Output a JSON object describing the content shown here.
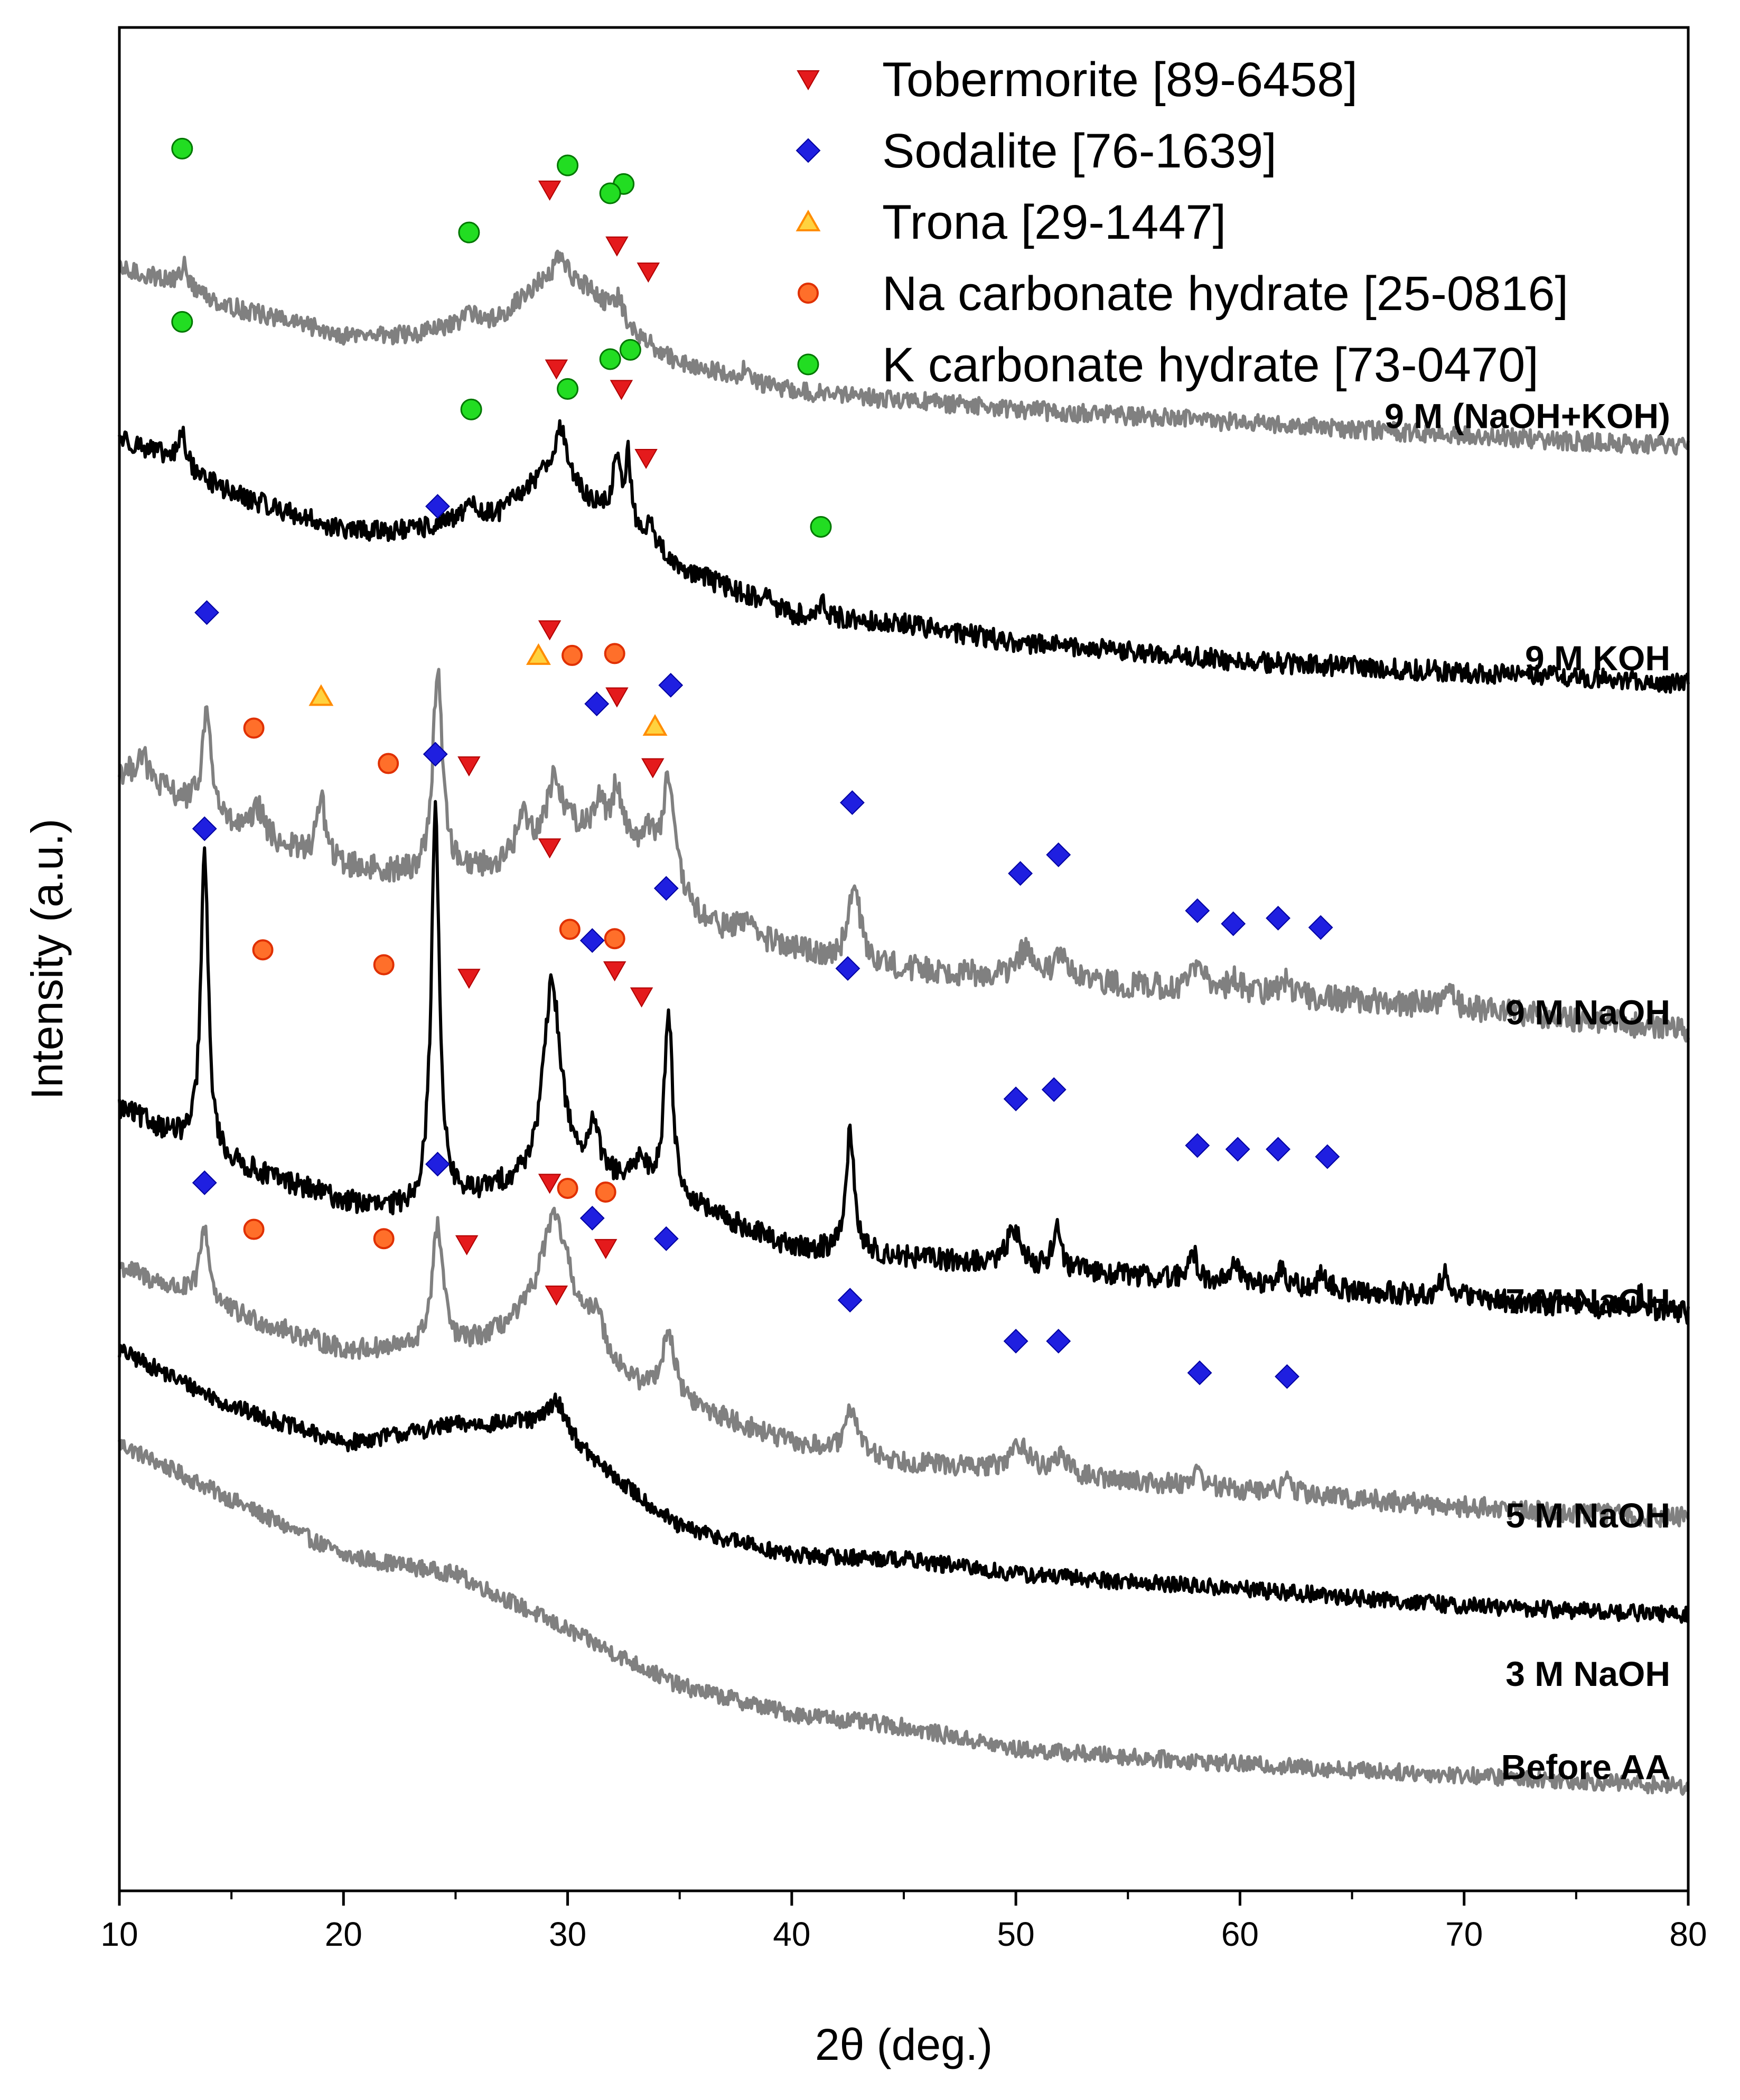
{
  "chart_data": {
    "type": "line",
    "title": "",
    "xlabel": "2θ (deg.)",
    "ylabel": "Intensity (a.u.)",
    "xlim": [
      10,
      80
    ],
    "ylim": [
      0,
      100
    ],
    "xticks": [
      10,
      20,
      30,
      40,
      50,
      60,
      70,
      80
    ],
    "grid": false,
    "legend_position": "top-right",
    "legend": [
      {
        "key": "tob",
        "label": "Tobermorite [89-6458]",
        "marker": "triangle-down",
        "color": "#e41a1c"
      },
      {
        "key": "sod",
        "label": "Sodalite [76-1639]",
        "marker": "diamond",
        "color": "#1f1fe0"
      },
      {
        "key": "tro",
        "label": "Trona [29-1447]",
        "marker": "triangle-up",
        "color": "#ffd23f"
      },
      {
        "key": "nac",
        "label": "Na carbonate hydrate [25-0816]",
        "marker": "circle",
        "color": "#ff6f2a"
      },
      {
        "key": "kc",
        "label": "K carbonate hydrate [73-0470]",
        "marker": "circle",
        "color": "#22dd22"
      }
    ],
    "series": [
      {
        "name": "Before AA",
        "color": "#808080",
        "baseline": 3,
        "noise": 0.45,
        "profile": [
          [
            10,
            21
          ],
          [
            15,
            18
          ],
          [
            20,
            15
          ],
          [
            25,
            14
          ],
          [
            30,
            11
          ],
          [
            35,
            8
          ],
          [
            40,
            6.5
          ],
          [
            45,
            5.8
          ],
          [
            50,
            4.6
          ],
          [
            60,
            3.8
          ],
          [
            70,
            3.2
          ],
          [
            80,
            2.6
          ]
        ],
        "peaks": [],
        "label_y": 6,
        "markers": []
      },
      {
        "name": "3 M NaOH",
        "color": "#000000",
        "baseline": 10,
        "noise": 0.45,
        "profile": [
          [
            10,
            19
          ],
          [
            15,
            16
          ],
          [
            20,
            14
          ],
          [
            25,
            15
          ],
          [
            28,
            15
          ],
          [
            30,
            14
          ],
          [
            35,
            9.5
          ],
          [
            40,
            8
          ],
          [
            45,
            7.8
          ],
          [
            50,
            7
          ],
          [
            60,
            6.2
          ],
          [
            70,
            5.3
          ],
          [
            80,
            4.8
          ]
        ],
        "peaks": [
          [
            29.5,
            2,
            0.6
          ]
        ],
        "label_y": 11,
        "markers": []
      },
      {
        "name": "5 M NaOH",
        "color": "#808080",
        "baseline": 18,
        "noise": 0.55,
        "profile": [
          [
            10,
            15.5
          ],
          [
            15,
            13
          ],
          [
            20,
            11
          ],
          [
            25,
            11
          ],
          [
            28,
            12
          ],
          [
            30,
            12
          ],
          [
            33,
            9
          ],
          [
            40,
            6
          ],
          [
            45,
            5
          ],
          [
            50,
            4.5
          ],
          [
            60,
            3.5
          ],
          [
            70,
            2.6
          ],
          [
            80,
            2
          ]
        ],
        "peaks": [
          [
            13.8,
            4,
            0.25
          ],
          [
            24.2,
            6.5,
            0.3
          ],
          [
            29.4,
            6,
            0.8
          ],
          [
            31.3,
            2,
            0.3
          ],
          [
            34.5,
            3.5,
            0.35
          ],
          [
            42.7,
            2.5,
            0.3
          ],
          [
            50.2,
            1.5,
            0.5
          ],
          [
            52,
            1.1,
            0.3
          ],
          [
            58.1,
            0.8,
            0.3
          ],
          [
            62.1,
            0.7,
            0.3
          ]
        ],
        "label_y": 19.5,
        "markers": [
          {
            "type": "sod",
            "x": 13.8,
            "y": 38
          },
          {
            "type": "sod",
            "x": 24.2,
            "y": 39
          },
          {
            "type": "tob",
            "x": 29.2,
            "y": 38
          },
          {
            "type": "nac",
            "x": 16.0,
            "y": 35.5
          },
          {
            "type": "nac",
            "x": 21.8,
            "y": 35.0
          },
          {
            "type": "tob",
            "x": 25.5,
            "y": 34.7
          },
          {
            "type": "nac",
            "x": 30.0,
            "y": 37.7
          },
          {
            "type": "nac",
            "x": 31.7,
            "y": 37.5
          },
          {
            "type": "sod",
            "x": 31.1,
            "y": 36.1
          },
          {
            "type": "tob",
            "x": 31.7,
            "y": 34.5
          },
          {
            "type": "sod",
            "x": 34.4,
            "y": 35.0
          },
          {
            "type": "tob",
            "x": 29.5,
            "y": 32.0
          },
          {
            "type": "sod",
            "x": 42.6,
            "y": 31.7
          },
          {
            "type": "sod",
            "x": 50.0,
            "y": 29.5
          },
          {
            "type": "sod",
            "x": 51.9,
            "y": 29.5
          },
          {
            "type": "sod",
            "x": 58.2,
            "y": 27.8
          },
          {
            "type": "sod",
            "x": 62.1,
            "y": 27.6
          }
        ]
      },
      {
        "name": "7 M NaOH",
        "color": "#000000",
        "baseline": 30,
        "noise": 0.6,
        "profile": [
          [
            10,
            12
          ],
          [
            15,
            9
          ],
          [
            20,
            7
          ],
          [
            22,
            6.5
          ],
          [
            25,
            7
          ],
          [
            28,
            8
          ],
          [
            30,
            9
          ],
          [
            35,
            7
          ],
          [
            40,
            4.5
          ],
          [
            45,
            4
          ],
          [
            50,
            3.5
          ],
          [
            60,
            2.6
          ],
          [
            70,
            1.8
          ],
          [
            80,
            1
          ]
        ],
        "peaks": [
          [
            13.8,
            16,
            0.2
          ],
          [
            24.1,
            21,
            0.22
          ],
          [
            29.3,
            10,
            0.45
          ],
          [
            31.2,
            2.5,
            0.2
          ],
          [
            33.3,
            1.5,
            0.3
          ],
          [
            34.5,
            10,
            0.22
          ],
          [
            42.6,
            6.5,
            0.22
          ],
          [
            49.9,
            2,
            0.35
          ],
          [
            51.8,
            2.2,
            0.22
          ],
          [
            57.9,
            1.5,
            0.2
          ],
          [
            59.8,
            1,
            0.25
          ],
          [
            61.8,
            0.8,
            0.25
          ],
          [
            63.7,
            0.8,
            0.2
          ],
          [
            69.2,
            1.2,
            0.3
          ],
          [
            77.9,
            0.8,
            0.25
          ]
        ],
        "label_y": 31,
        "markers": [
          {
            "type": "sod",
            "x": 13.8,
            "y": 57
          },
          {
            "type": "sod",
            "x": 24.1,
            "y": 61
          },
          {
            "type": "tob",
            "x": 29.2,
            "y": 56
          },
          {
            "type": "nac",
            "x": 16.4,
            "y": 50.5
          },
          {
            "type": "nac",
            "x": 21.8,
            "y": 49.7
          },
          {
            "type": "tob",
            "x": 25.6,
            "y": 49.0
          },
          {
            "type": "nac",
            "x": 30.1,
            "y": 51.6
          },
          {
            "type": "nac",
            "x": 32.1,
            "y": 51.1
          },
          {
            "type": "sod",
            "x": 31.1,
            "y": 51.0
          },
          {
            "type": "sod",
            "x": 34.4,
            "y": 53.8
          },
          {
            "type": "tob",
            "x": 32.1,
            "y": 49.4
          },
          {
            "type": "tob",
            "x": 33.3,
            "y": 48.0
          },
          {
            "type": "sod",
            "x": 42.5,
            "y": 49.5
          },
          {
            "type": "sod",
            "x": 50.0,
            "y": 42.5
          },
          {
            "type": "sod",
            "x": 51.7,
            "y": 43.0
          },
          {
            "type": "sod",
            "x": 58.1,
            "y": 40.0
          },
          {
            "type": "sod",
            "x": 59.9,
            "y": 39.8
          },
          {
            "type": "sod",
            "x": 61.7,
            "y": 39.8
          },
          {
            "type": "sod",
            "x": 63.9,
            "y": 39.4
          }
        ]
      },
      {
        "name": "9 M NaOH",
        "color": "#808080",
        "baseline": 45,
        "noise": 0.7,
        "profile": [
          [
            10,
            15
          ],
          [
            12,
            14
          ],
          [
            15,
            12
          ],
          [
            20,
            10
          ],
          [
            23,
            9.5
          ],
          [
            27,
            10
          ],
          [
            30,
            12
          ],
          [
            33,
            11
          ],
          [
            36,
            7
          ],
          [
            40,
            5.5
          ],
          [
            45,
            4.5
          ],
          [
            50,
            4
          ],
          [
            60,
            3.2
          ],
          [
            70,
            2.4
          ],
          [
            80,
            1.2
          ]
        ],
        "peaks": [
          [
            11,
            1.5,
            0.3
          ],
          [
            13.9,
            5.5,
            0.25
          ],
          [
            16.2,
            1.5,
            0.3
          ],
          [
            19,
            3.5,
            0.2
          ],
          [
            24.2,
            11,
            0.25
          ],
          [
            28,
            2,
            0.3
          ],
          [
            29.4,
            3,
            0.4
          ],
          [
            31.4,
            2,
            0.25
          ],
          [
            32.2,
            3,
            0.25
          ],
          [
            33.7,
            1.5,
            0.3
          ],
          [
            34.5,
            5.5,
            0.3
          ],
          [
            38,
            1,
            0.3
          ],
          [
            42.8,
            4,
            0.3
          ],
          [
            50.4,
            1.5,
            0.4
          ],
          [
            52,
            1.5,
            0.3
          ],
          [
            58.1,
            1.2,
            0.35
          ],
          [
            59.8,
            0.8,
            0.3
          ],
          [
            62,
            0.8,
            0.3
          ],
          [
            69.3,
            0.8,
            0.3
          ]
        ],
        "label_y": 46.5,
        "markers": [
          {
            "type": "sod",
            "x": 24.2,
            "y": 74.3
          },
          {
            "type": "sod",
            "x": 13.9,
            "y": 68.6
          },
          {
            "type": "tob",
            "x": 29.2,
            "y": 67.7
          },
          {
            "type": "tro",
            "x": 28.7,
            "y": 66.3
          },
          {
            "type": "nac",
            "x": 30.2,
            "y": 66.3
          },
          {
            "type": "nac",
            "x": 32.1,
            "y": 66.4
          },
          {
            "type": "tro",
            "x": 19.0,
            "y": 64.1
          },
          {
            "type": "sod",
            "x": 31.3,
            "y": 63.7
          },
          {
            "type": "tob",
            "x": 32.2,
            "y": 64.1
          },
          {
            "type": "sod",
            "x": 34.6,
            "y": 64.7
          },
          {
            "type": "nac",
            "x": 16.0,
            "y": 62.4
          },
          {
            "type": "tro",
            "x": 33.9,
            "y": 62.5
          },
          {
            "type": "tob",
            "x": 25.6,
            "y": 60.4
          },
          {
            "type": "nac",
            "x": 22.0,
            "y": 60.5
          },
          {
            "type": "tob",
            "x": 33.8,
            "y": 60.3
          },
          {
            "type": "sod",
            "x": 42.7,
            "y": 58.4
          },
          {
            "type": "sod",
            "x": 50.2,
            "y": 54.6
          },
          {
            "type": "sod",
            "x": 51.9,
            "y": 55.6
          },
          {
            "type": "sod",
            "x": 58.1,
            "y": 52.6
          },
          {
            "type": "sod",
            "x": 59.7,
            "y": 51.9
          },
          {
            "type": "sod",
            "x": 61.7,
            "y": 52.2
          },
          {
            "type": "sod",
            "x": 63.6,
            "y": 51.7
          }
        ]
      },
      {
        "name": "9 M KOH",
        "color": "#000000",
        "baseline": 64,
        "noise": 0.55,
        "profile": [
          [
            10,
            14
          ],
          [
            12,
            13
          ],
          [
            15,
            11
          ],
          [
            20,
            9
          ],
          [
            23,
            9
          ],
          [
            27,
            10
          ],
          [
            29,
            12
          ],
          [
            31,
            10.5
          ],
          [
            35,
            7
          ],
          [
            40,
            4.5
          ],
          [
            45,
            4
          ],
          [
            50,
            3
          ],
          [
            60,
            2
          ],
          [
            70,
            1.4
          ],
          [
            80,
            0.8
          ]
        ],
        "peaks": [
          [
            12.8,
            1.8,
            0.2
          ],
          [
            25.6,
            1.2,
            0.2
          ],
          [
            29.7,
            3,
            0.35
          ],
          [
            32.2,
            3.5,
            0.2
          ],
          [
            32.7,
            3.8,
            0.15
          ],
          [
            33.7,
            1.5,
            0.2
          ],
          [
            38.8,
            0.6,
            0.2
          ],
          [
            41.3,
            0.8,
            0.2
          ]
        ],
        "label_y": 65.5,
        "markers": [
          {
            "type": "kc",
            "x": 12.8,
            "y": 84.2
          },
          {
            "type": "tob",
            "x": 29.5,
            "y": 81.7
          },
          {
            "type": "kc",
            "x": 31.9,
            "y": 82.2
          },
          {
            "type": "kc",
            "x": 32.8,
            "y": 82.7
          },
          {
            "type": "kc",
            "x": 25.7,
            "y": 79.5
          },
          {
            "type": "kc",
            "x": 30.0,
            "y": 80.6
          },
          {
            "type": "tob",
            "x": 32.4,
            "y": 80.6
          },
          {
            "type": "tob",
            "x": 33.5,
            "y": 76.9
          },
          {
            "type": "kc",
            "x": 41.3,
            "y": 73.2
          }
        ]
      },
      {
        "name": "9 M (NaOH+KOH)",
        "color": "#808080",
        "baseline": 77,
        "noise": 0.5,
        "profile": [
          [
            10,
            10
          ],
          [
            12,
            9.5
          ],
          [
            15,
            8
          ],
          [
            20,
            6.5
          ],
          [
            23,
            6.5
          ],
          [
            27,
            7.5
          ],
          [
            29,
            9.5
          ],
          [
            31,
            9
          ],
          [
            33,
            6.5
          ],
          [
            35,
            5
          ],
          [
            40,
            3.5
          ],
          [
            45,
            3
          ],
          [
            50,
            2.5
          ],
          [
            60,
            1.8
          ],
          [
            70,
            1.1
          ],
          [
            80,
            0.5
          ]
        ],
        "peaks": [
          [
            12.9,
            1.2,
            0.2
          ],
          [
            25.6,
            0.8,
            0.2
          ],
          [
            29.7,
            1.5,
            0.3
          ],
          [
            32.3,
            1.2,
            0.2
          ],
          [
            37.9,
            0.6,
            0.2
          ]
        ],
        "label_y": 78.5,
        "markers": [
          {
            "type": "kc",
            "x": 12.8,
            "y": 93.5
          },
          {
            "type": "kc",
            "x": 30.0,
            "y": 92.6
          },
          {
            "type": "kc",
            "x": 32.5,
            "y": 91.6
          },
          {
            "type": "tob",
            "x": 29.2,
            "y": 91.3
          },
          {
            "type": "kc",
            "x": 31.9,
            "y": 91.1
          },
          {
            "type": "kc",
            "x": 25.6,
            "y": 89.0
          },
          {
            "type": "tob",
            "x": 32.2,
            "y": 88.3
          },
          {
            "type": "tob",
            "x": 33.6,
            "y": 86.9
          }
        ]
      }
    ]
  }
}
